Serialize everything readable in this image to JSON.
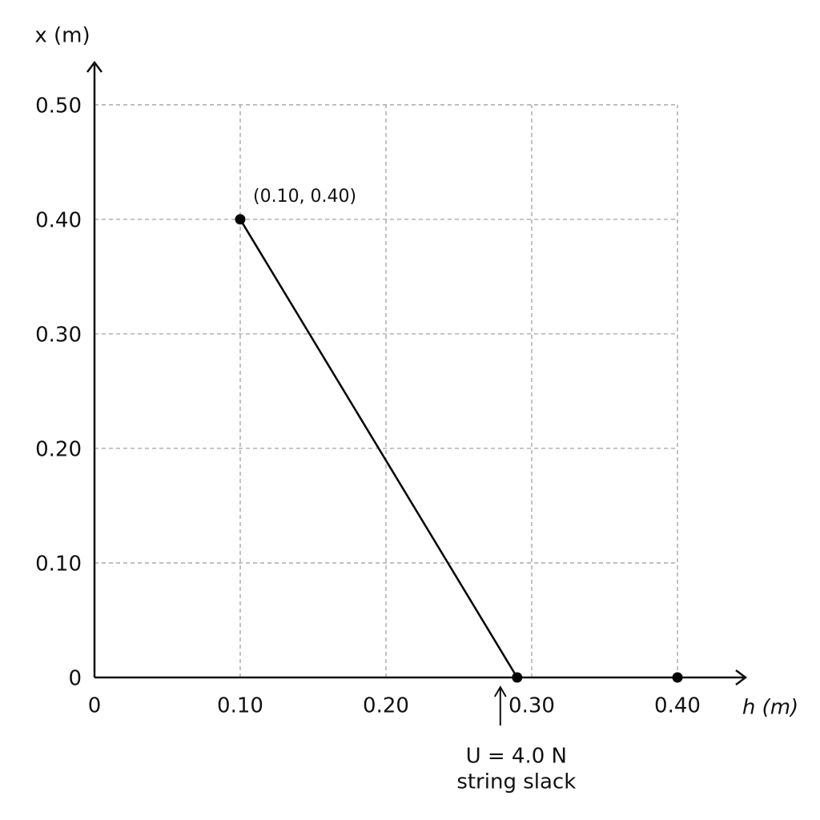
{
  "chart_data": {
    "type": "line",
    "xlabel": "h (m)",
    "ylabel": "x (m)",
    "series": [
      {
        "x": [
          0.1,
          0.29
        ],
        "values": [
          0.4,
          0
        ],
        "color": "#000000",
        "line": true
      },
      {
        "x": [
          0.4
        ],
        "values": [
          0
        ],
        "color": "#000000",
        "line": false
      }
    ],
    "xlim": [
      0,
      0.45
    ],
    "ylim": [
      0,
      0.53
    ],
    "xticks": [
      0,
      {
        "value": 0.1,
        "label": "0.10"
      },
      {
        "value": 0.2,
        "label": "0.20"
      },
      {
        "value": 0.3,
        "label": "0.30"
      },
      {
        "value": 0.4,
        "label": "0.40"
      }
    ],
    "yticks": [
      0,
      {
        "value": 0.1,
        "label": "0.10"
      },
      {
        "value": 0.2,
        "label": "0.20"
      },
      {
        "value": 0.3,
        "label": "0.30"
      },
      {
        "value": 0.4,
        "label": "0.40"
      },
      {
        "value": 0.5,
        "label": "0.50"
      }
    ],
    "grid": true,
    "annotations": [
      "(0.10, 0.40)",
      "U = 4.0 N",
      "string slack"
    ]
  }
}
